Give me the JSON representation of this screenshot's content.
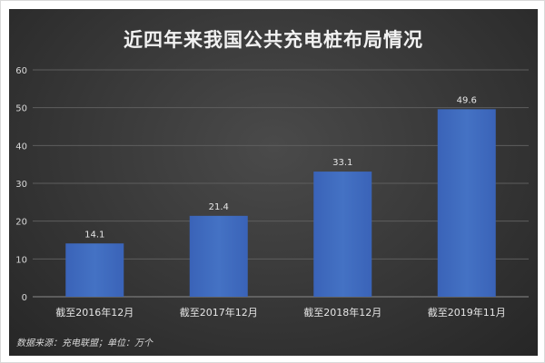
{
  "chart_data": {
    "type": "bar",
    "title": "近四年来我国公共充电桩布局情况",
    "categories": [
      "截至2016年12月",
      "截至2017年12月",
      "截至2018年12月",
      "截至2019年11月"
    ],
    "values": [
      14.1,
      21.4,
      33.1,
      49.6
    ],
    "data_labels": [
      "14.1",
      "21.4",
      "33.1",
      "49.6"
    ],
    "ylim": [
      0,
      60
    ],
    "yticks": [
      0,
      10,
      20,
      30,
      40,
      50,
      60
    ],
    "grid": true,
    "legend": "none",
    "bar_color": "#4472c4",
    "source": "数据来源：充电联盟；单位：万个"
  }
}
